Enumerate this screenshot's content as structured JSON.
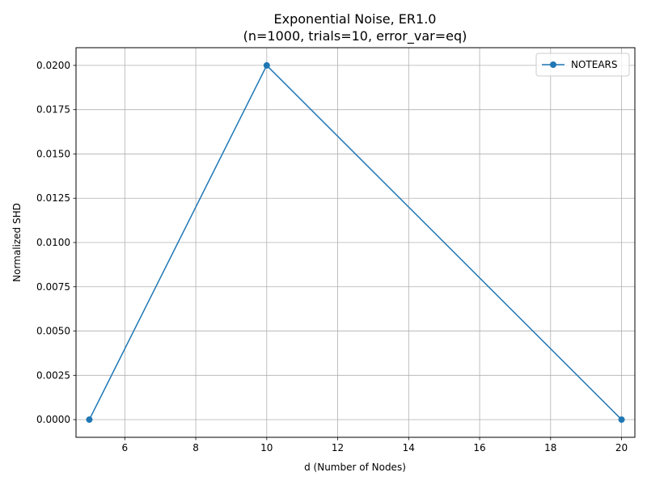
{
  "chart_data": {
    "type": "line",
    "title": "Exponential Noise, ER1.0",
    "subtitle": "(n=1000, trials=10, error_var=eq)",
    "xlabel": "d (Number of Nodes)",
    "ylabel": "Normalized SHD",
    "xlim": [
      4.625,
      20.375
    ],
    "ylim": [
      -0.001,
      0.021
    ],
    "x_ticks": [
      6,
      8,
      10,
      12,
      14,
      16,
      18,
      20
    ],
    "x_tick_labels": [
      "6",
      "8",
      "10",
      "12",
      "14",
      "16",
      "18",
      "20"
    ],
    "y_ticks": [
      0.0,
      0.0025,
      0.005,
      0.0075,
      0.01,
      0.0125,
      0.015,
      0.0175,
      0.02
    ],
    "y_tick_labels": [
      "0.0000",
      "0.0025",
      "0.0050",
      "0.0075",
      "0.0100",
      "0.0125",
      "0.0150",
      "0.0175",
      "0.0200"
    ],
    "grid": true,
    "legend_position": "top-right",
    "series": [
      {
        "name": "NOTEARS",
        "color": "#1f77b4",
        "marker": "circle",
        "x": [
          5,
          10,
          20
        ],
        "y": [
          0.0,
          0.02,
          0.0
        ]
      }
    ]
  }
}
